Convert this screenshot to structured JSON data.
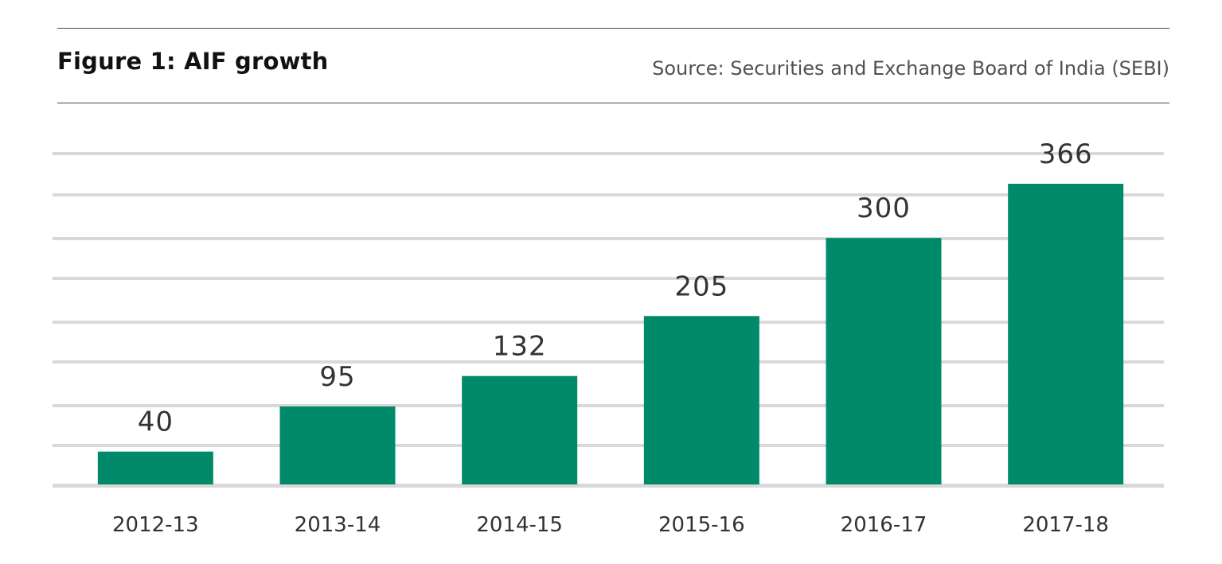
{
  "header": {
    "title": "Figure 1: AIF growth",
    "source": "Source: Securities and Exchange Board of India (SEBI)"
  },
  "colors": {
    "bar": "#008a6a",
    "grid": "#d9d9d9",
    "text": "#333333"
  },
  "chart_data": {
    "type": "bar",
    "title": "Figure 1: AIF growth",
    "categories": [
      "2012-13",
      "2013-14",
      "2014-15",
      "2015-16",
      "2016-17",
      "2017-18"
    ],
    "values": [
      40,
      95,
      132,
      205,
      300,
      366
    ],
    "xlabel": "",
    "ylabel": "",
    "grid": true,
    "legend": "none"
  }
}
